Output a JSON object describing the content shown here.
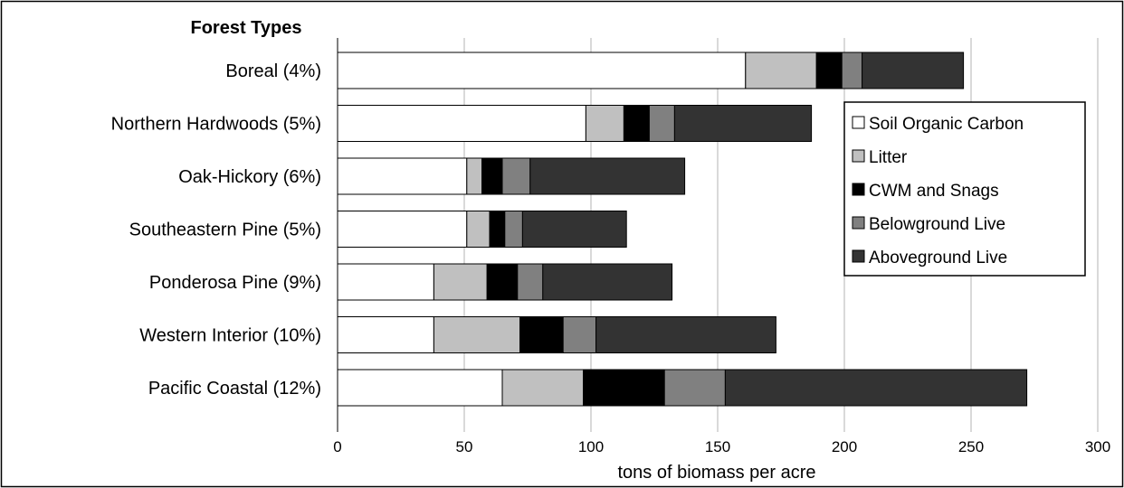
{
  "chart_data": {
    "type": "bar",
    "orientation": "horizontal",
    "stacked": true,
    "header": "Forest Types",
    "xlabel": "tons of biomass per acre",
    "ylabel": "",
    "xlim": [
      0,
      300
    ],
    "xticks": [
      0,
      50,
      100,
      150,
      200,
      250,
      300
    ],
    "grid": "vertical",
    "legend_position": "right",
    "categories": [
      "Boreal (4%)",
      "Northern Hardwoods (5%)",
      "Oak-Hickory (6%)",
      "Southeastern Pine (5%)",
      "Ponderosa Pine (9%)",
      "Western Interior  (10%)",
      "Pacific Coastal (12%)"
    ],
    "series": [
      {
        "name": "Soil Organic Carbon",
        "color": "#ffffff",
        "values": [
          161,
          98,
          51,
          51,
          38,
          38,
          65
        ]
      },
      {
        "name": "Litter",
        "color": "#c0c0c0",
        "values": [
          28,
          15,
          6,
          9,
          21,
          34,
          32
        ]
      },
      {
        "name": "CWM and Snags",
        "color": "#000000",
        "values": [
          10,
          10,
          8,
          6,
          12,
          17,
          32
        ]
      },
      {
        "name": "Belowground Live",
        "color": "#808080",
        "values": [
          8,
          10,
          11,
          7,
          10,
          13,
          24
        ]
      },
      {
        "name": "Aboveground Live",
        "color": "#333333",
        "values": [
          40,
          54,
          61,
          41,
          51,
          71,
          119
        ]
      }
    ]
  }
}
